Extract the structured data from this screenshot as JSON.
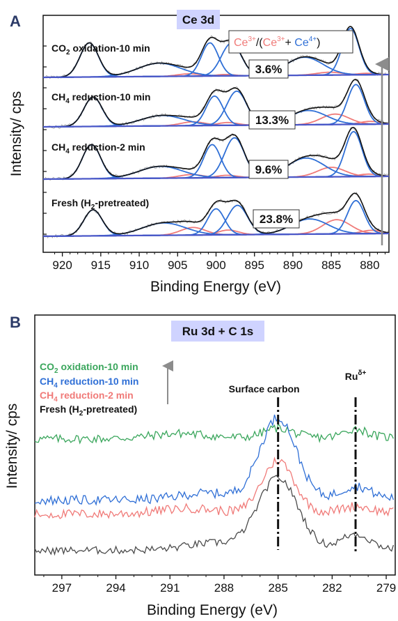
{
  "colors": {
    "ce3": "#f07a78",
    "ce4": "#2f6fd6",
    "background_fit": "#4a57c8",
    "envelope": "#111111",
    "raw": "#9a9a9a",
    "title_box": "#cfd3ff",
    "arrow": "#8c8c8c",
    "panel_label": "#2b3a67"
  },
  "chart_data": [
    {
      "type": "line",
      "panel": "A",
      "title": "Ce 3d",
      "xlabel": "Binding Energy (eV)",
      "ylabel": "Intensity/ cps",
      "x_reversed": true,
      "xlim": [
        922.5,
        877.5
      ],
      "x_ticks": [
        920,
        915,
        910,
        905,
        900,
        895,
        890,
        885,
        880
      ],
      "grid": false,
      "legend": {
        "prefix": "Ce",
        "ce3_sup": "3+",
        "open": "/(",
        "plus": "+ ",
        "close": ")"
      },
      "series": [
        {
          "name": "CO₂ oxidation-10 min",
          "label_main": "CO",
          "label_sub": "2",
          "label_rest": " oxidation-10 min",
          "ratio_label": "3.6%",
          "ce4_peaks": [
            [
              916.5,
              0.72,
              1.2
            ],
            [
              907.4,
              0.28,
              2.8
            ],
            [
              900.8,
              0.7,
              1.1
            ],
            [
              898.0,
              0.69,
              1.3
            ],
            [
              888.5,
              0.38,
              2.4
            ],
            [
              882.5,
              0.98,
              1.1
            ]
          ],
          "ce3_peaks": [
            [
              903.5,
              0.05,
              1.5
            ],
            [
              898.8,
              0.03,
              1.2
            ],
            [
              885.2,
              0.06,
              1.7
            ],
            [
              880.5,
              0.03,
              1.2
            ]
          ]
        },
        {
          "name": "CH₄ reduction-10 min",
          "label_main": "CH",
          "label_sub": "4",
          "label_rest": " reduction-10 min",
          "ratio_label": "13.3%",
          "ce4_peaks": [
            [
              916.0,
              0.62,
              1.2
            ],
            [
              907.0,
              0.22,
              2.8
            ],
            [
              900.2,
              0.62,
              1.1
            ],
            [
              897.3,
              0.72,
              1.3
            ],
            [
              888.0,
              0.3,
              2.4
            ],
            [
              881.8,
              0.84,
              1.1
            ]
          ],
          "ce3_peaks": [
            [
              903.0,
              0.08,
              1.6
            ],
            [
              898.5,
              0.06,
              1.3
            ],
            [
              884.5,
              0.22,
              1.8
            ],
            [
              880.0,
              0.06,
              1.3
            ]
          ]
        },
        {
          "name": "CH₄ reduction-2 min",
          "label_main": "CH",
          "label_sub": "4",
          "label_rest": " reduction-2 min",
          "ratio_label": "9.6%",
          "ce4_peaks": [
            [
              916.2,
              0.72,
              1.2
            ],
            [
              907.2,
              0.25,
              2.8
            ],
            [
              900.5,
              0.7,
              1.1
            ],
            [
              897.6,
              0.84,
              1.3
            ],
            [
              888.3,
              0.4,
              2.4
            ],
            [
              882.1,
              0.95,
              1.1
            ]
          ],
          "ce3_peaks": [
            [
              903.2,
              0.07,
              1.6
            ],
            [
              898.6,
              0.05,
              1.3
            ],
            [
              885.0,
              0.2,
              1.8
            ],
            [
              880.2,
              0.05,
              1.3
            ]
          ]
        },
        {
          "name": "Fresh (H₂-pretreated)",
          "label_main": "Fresh (H",
          "label_sub": "2",
          "label_rest": "-pretreated)",
          "ratio_label": "23.8%",
          "ce4_peaks": [
            [
              916.0,
              0.55,
              1.2
            ],
            [
              906.8,
              0.26,
              2.8
            ],
            [
              900.0,
              0.55,
              1.1
            ],
            [
              897.2,
              0.62,
              1.3
            ],
            [
              887.8,
              0.32,
              2.4
            ],
            [
              881.8,
              0.7,
              1.1
            ]
          ],
          "ce3_peaks": [
            [
              903.0,
              0.16,
              1.6
            ],
            [
              898.4,
              0.1,
              1.3
            ],
            [
              884.3,
              0.3,
              1.8
            ],
            [
              879.8,
              0.07,
              1.3
            ]
          ]
        }
      ]
    },
    {
      "type": "line",
      "panel": "B",
      "title": "Ru 3d + C 1s",
      "xlabel": "Binding Energy (eV)",
      "ylabel": "Intensity/ cps",
      "x_reversed": true,
      "xlim": [
        298.5,
        278.5
      ],
      "x_ticks": [
        297,
        294,
        291,
        288,
        285,
        282,
        279
      ],
      "grid": false,
      "annotations": [
        {
          "text": "Surface carbon",
          "x": 285
        },
        {
          "text": "Ru",
          "sup": "δ+",
          "x": 280.7
        }
      ],
      "series": [
        {
          "name": "CO₂ oxidation-10 min",
          "label_main": "CO",
          "label_sub": "2",
          "label_rest": " oxidation-10 min",
          "color": "#3aa65c",
          "peaks": [
            [
              285.0,
              0.1,
              0.8
            ],
            [
              280.7,
              0.09,
              0.6
            ],
            [
              290.5,
              0.05,
              1.5
            ]
          ],
          "base": 0.05
        },
        {
          "name": "CH₄ reduction-10 min",
          "label_main": "CH",
          "label_sub": "4",
          "label_rest": " reduction-10 min",
          "color": "#2f6fd6",
          "peaks": [
            [
              285.0,
              0.78,
              1.0
            ],
            [
              280.7,
              0.12,
              0.8
            ],
            [
              289.0,
              0.06,
              1.5
            ]
          ],
          "base": 0.03
        },
        {
          "name": "CH₄ reduction-2 min",
          "label_main": "CH",
          "label_sub": "4",
          "label_rest": " reduction-2 min",
          "color": "#f07a78",
          "peaks": [
            [
              285.0,
              0.5,
              0.9
            ],
            [
              280.7,
              0.06,
              0.8
            ],
            [
              290.0,
              0.05,
              1.5
            ]
          ],
          "base": 0.03
        },
        {
          "name": "Fresh (H₂-pretreated)",
          "label_main": "Fresh (H",
          "label_sub": "2",
          "label_rest": "-pretreated)",
          "color": "#4a4a4a",
          "peaks": [
            [
              285.0,
              0.85,
              1.1
            ],
            [
              280.7,
              0.18,
              0.8
            ],
            [
              288.5,
              0.08,
              1.6
            ]
          ],
          "base": 0.02
        }
      ]
    }
  ]
}
